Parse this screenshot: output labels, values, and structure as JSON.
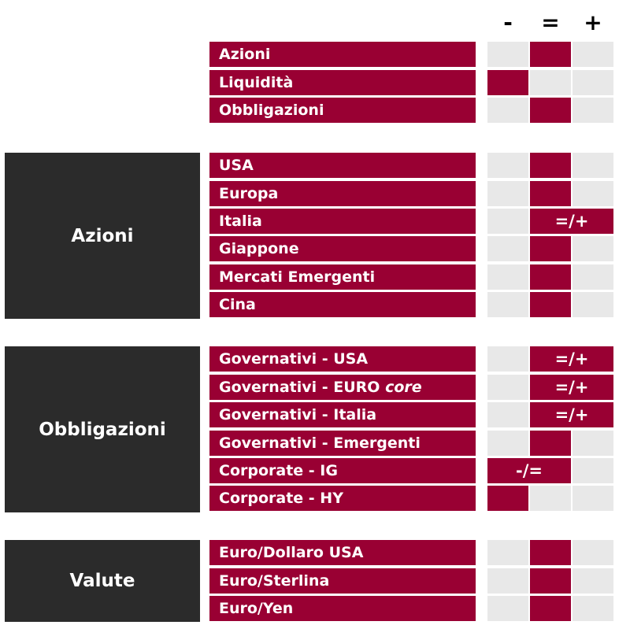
{
  "header": {
    "minus": "-",
    "equal": "=",
    "plus": "+"
  },
  "colors": {
    "accent": "#990033",
    "dark": "#2b2b2b",
    "empty": "#e8e8e8"
  },
  "categories": {
    "azioni": "Azioni",
    "obbligazioni": "Obbligazioni",
    "valute": "Valute"
  },
  "rows": {
    "azioni_top": "Azioni",
    "liquidita": "Liquidità",
    "obbligazioni_top": "Obbligazioni",
    "usa": "USA",
    "europa": "Europa",
    "italia": "Italia",
    "italia_value": "=/+",
    "giappone": "Giappone",
    "mercati_emergenti": "Mercati Emergenti",
    "cina": "Cina",
    "gov_usa": "Governativi - USA",
    "gov_usa_value": "=/+",
    "gov_euro_core_prefix": "Governativi - EURO ",
    "gov_euro_core_italic": "core",
    "gov_euro_core_value": "=/+",
    "gov_italia": "Governativi - Italia",
    "gov_italia_value": "=/+",
    "gov_emergenti": "Governativi - Emergenti",
    "corp_ig": "Corporate - IG",
    "corp_ig_value": "-/=",
    "corp_hy": "Corporate - HY",
    "eur_usd": "Euro/Dollaro USA",
    "eur_gbp": "Euro/Sterlina",
    "eur_jpy": "Euro/Yen"
  }
}
